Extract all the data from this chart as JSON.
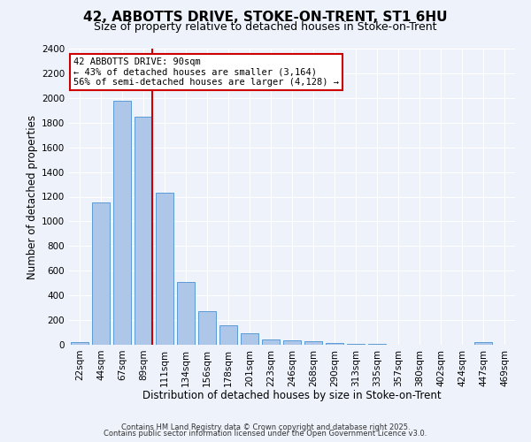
{
  "title": "42, ABBOTTS DRIVE, STOKE-ON-TRENT, ST1 6HU",
  "subtitle": "Size of property relative to detached houses in Stoke-on-Trent",
  "xlabel": "Distribution of detached houses by size in Stoke-on-Trent",
  "ylabel": "Number of detached properties",
  "bar_labels": [
    "22sqm",
    "44sqm",
    "67sqm",
    "89sqm",
    "111sqm",
    "134sqm",
    "156sqm",
    "178sqm",
    "201sqm",
    "223sqm",
    "246sqm",
    "268sqm",
    "290sqm",
    "313sqm",
    "335sqm",
    "357sqm",
    "380sqm",
    "402sqm",
    "424sqm",
    "447sqm",
    "469sqm"
  ],
  "bar_values": [
    22,
    1155,
    1980,
    1850,
    1230,
    510,
    270,
    155,
    90,
    45,
    35,
    30,
    15,
    8,
    5,
    3,
    2,
    2,
    1,
    18,
    0
  ],
  "bar_color": "#aec6e8",
  "bar_edge_color": "#5b9bd5",
  "background_color": "#eef2fb",
  "grid_color": "#ffffff",
  "annotation_line1": "42 ABBOTTS DRIVE: 90sqm",
  "annotation_line2": "← 43% of detached houses are smaller (3,164)",
  "annotation_line3": "56% of semi-detached houses are larger (4,128) →",
  "vline_x_index": 3,
  "vline_color": "#cc0000",
  "annotation_box_color": "#ffffff",
  "annotation_box_edge": "#cc0000",
  "footnote1": "Contains HM Land Registry data © Crown copyright and database right 2025.",
  "footnote2": "Contains public sector information licensed under the Open Government Licence v3.0.",
  "ylim": [
    0,
    2400
  ],
  "yticks": [
    0,
    200,
    400,
    600,
    800,
    1000,
    1200,
    1400,
    1600,
    1800,
    2000,
    2200,
    2400
  ],
  "title_fontsize": 11,
  "subtitle_fontsize": 9,
  "xlabel_fontsize": 8.5,
  "ylabel_fontsize": 8.5,
  "tick_fontsize": 7.5,
  "annot_fontsize": 7.5
}
